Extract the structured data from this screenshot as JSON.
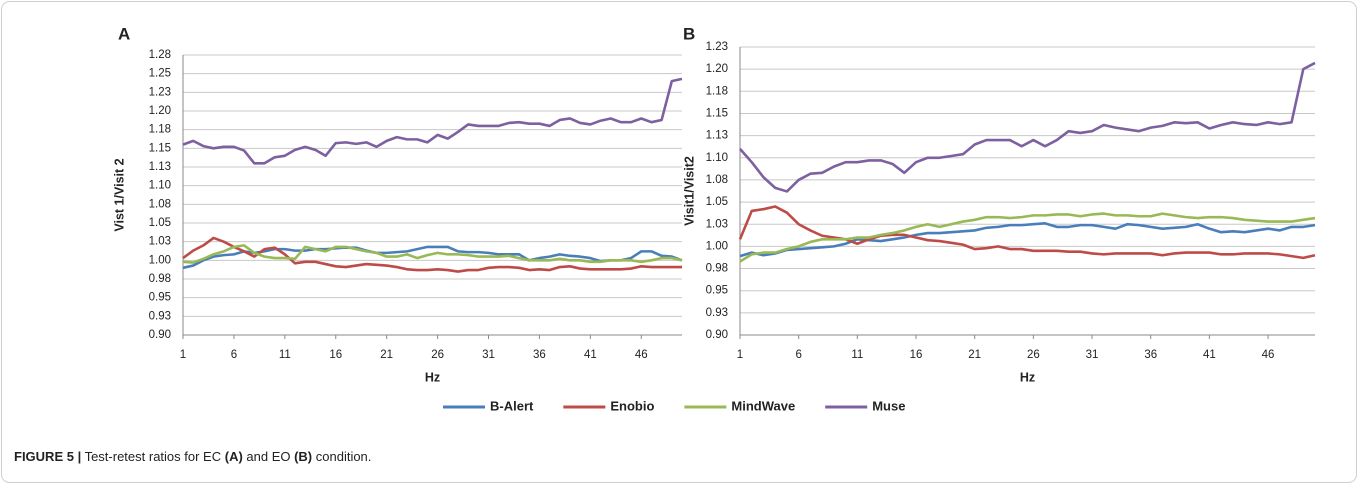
{
  "chart_data": [
    {
      "type": "line",
      "panel": "A",
      "y_label": "Vist 1/Visit 2",
      "x_label": "Hz",
      "x": [
        1,
        2,
        3,
        4,
        5,
        6,
        7,
        8,
        9,
        10,
        11,
        12,
        13,
        14,
        15,
        16,
        17,
        18,
        19,
        20,
        21,
        22,
        23,
        24,
        25,
        26,
        27,
        28,
        29,
        30,
        31,
        32,
        33,
        34,
        35,
        36,
        37,
        38,
        39,
        40,
        41,
        42,
        43,
        44,
        45,
        46,
        47,
        48,
        49,
        50
      ],
      "xlim": [
        1,
        50
      ],
      "xticks": [
        1,
        6,
        11,
        16,
        21,
        26,
        31,
        36,
        41,
        46
      ],
      "ylim": [
        0.9,
        1.275
      ],
      "yticks": [
        {
          "value": 0.9,
          "label": "0.90"
        },
        {
          "value": 0.925,
          "label": "0.93"
        },
        {
          "value": 0.95,
          "label": "0.95"
        },
        {
          "value": 0.975,
          "label": "0.98"
        },
        {
          "value": 1.0,
          "label": "1.00"
        },
        {
          "value": 1.025,
          "label": "1.03"
        },
        {
          "value": 1.05,
          "label": "1.05"
        },
        {
          "value": 1.075,
          "label": "1.08"
        },
        {
          "value": 1.1,
          "label": "1.10"
        },
        {
          "value": 1.125,
          "label": "1.13"
        },
        {
          "value": 1.15,
          "label": "1.15"
        },
        {
          "value": 1.175,
          "label": "1.18"
        },
        {
          "value": 1.2,
          "label": "1.20"
        },
        {
          "value": 1.225,
          "label": "1.23"
        },
        {
          "value": 1.25,
          "label": "1.25"
        },
        {
          "value": 1.275,
          "label": "1.28"
        }
      ],
      "grid": true,
      "series": [
        {
          "name": "B-Alert",
          "color": "#4a7ebb",
          "values": [
            0.99,
            0.993,
            1.0,
            1.005,
            1.007,
            1.008,
            1.012,
            1.01,
            1.012,
            1.015,
            1.015,
            1.013,
            1.013,
            1.015,
            1.015,
            1.016,
            1.017,
            1.017,
            1.013,
            1.01,
            1.01,
            1.011,
            1.012,
            1.015,
            1.018,
            1.018,
            1.018,
            1.012,
            1.011,
            1.011,
            1.01,
            1.008,
            1.008,
            1.008,
            1.0,
            1.003,
            1.005,
            1.008,
            1.006,
            1.005,
            1.003,
            0.999,
            1.0,
            1.0,
            1.003,
            1.012,
            1.012,
            1.006,
            1.005,
            1.0
          ]
        },
        {
          "name": "Enobio",
          "color": "#be4b48",
          "values": [
            1.003,
            1.013,
            1.02,
            1.03,
            1.025,
            1.018,
            1.012,
            1.005,
            1.015,
            1.017,
            1.008,
            0.996,
            0.998,
            0.998,
            0.995,
            0.992,
            0.991,
            0.993,
            0.995,
            0.994,
            0.993,
            0.991,
            0.988,
            0.987,
            0.987,
            0.988,
            0.987,
            0.985,
            0.987,
            0.987,
            0.99,
            0.991,
            0.991,
            0.99,
            0.987,
            0.988,
            0.987,
            0.991,
            0.992,
            0.989,
            0.988,
            0.988,
            0.988,
            0.988,
            0.989,
            0.992,
            0.991,
            0.991,
            0.991,
            0.991
          ]
        },
        {
          "name": "MindWave",
          "color": "#98b954",
          "values": [
            0.998,
            0.997,
            1.002,
            1.008,
            1.012,
            1.018,
            1.02,
            1.01,
            1.005,
            1.003,
            1.003,
            1.002,
            1.018,
            1.015,
            1.012,
            1.018,
            1.018,
            1.015,
            1.012,
            1.01,
            1.005,
            1.005,
            1.008,
            1.003,
            1.007,
            1.01,
            1.008,
            1.008,
            1.007,
            1.005,
            1.005,
            1.005,
            1.006,
            1.003,
            1.0,
            1.0,
            1.0,
            1.002,
            1.0,
            1.0,
            0.998,
            0.998,
            1.0,
            1.0,
            1.0,
            0.998,
            1.0,
            1.003,
            1.003,
            1.0
          ]
        },
        {
          "name": "Muse",
          "color": "#7d60a0",
          "values": [
            1.155,
            1.16,
            1.153,
            1.15,
            1.152,
            1.152,
            1.147,
            1.13,
            1.13,
            1.138,
            1.14,
            1.148,
            1.152,
            1.148,
            1.14,
            1.157,
            1.158,
            1.156,
            1.158,
            1.152,
            1.16,
            1.165,
            1.162,
            1.162,
            1.158,
            1.168,
            1.163,
            1.172,
            1.182,
            1.18,
            1.18,
            1.18,
            1.184,
            1.185,
            1.183,
            1.183,
            1.18,
            1.188,
            1.19,
            1.184,
            1.182,
            1.187,
            1.19,
            1.185,
            1.185,
            1.19,
            1.185,
            1.188,
            1.24,
            1.243
          ]
        }
      ]
    },
    {
      "type": "line",
      "panel": "B",
      "y_label": "Visit1/Visit2",
      "x_label": "Hz",
      "x": [
        1,
        2,
        3,
        4,
        5,
        6,
        7,
        8,
        9,
        10,
        11,
        12,
        13,
        14,
        15,
        16,
        17,
        18,
        19,
        20,
        21,
        22,
        23,
        24,
        25,
        26,
        27,
        28,
        29,
        30,
        31,
        32,
        33,
        34,
        35,
        36,
        37,
        38,
        39,
        40,
        41,
        42,
        43,
        44,
        45,
        46,
        47,
        48,
        49,
        50
      ],
      "xlim": [
        1,
        50
      ],
      "xticks": [
        1,
        6,
        11,
        16,
        21,
        26,
        31,
        36,
        41,
        46
      ],
      "ylim": [
        0.9,
        1.225
      ],
      "yticks": [
        {
          "value": 0.9,
          "label": "0.90"
        },
        {
          "value": 0.925,
          "label": "0.93"
        },
        {
          "value": 0.95,
          "label": "0.95"
        },
        {
          "value": 0.975,
          "label": "0.98"
        },
        {
          "value": 1.0,
          "label": "1.00"
        },
        {
          "value": 1.025,
          "label": "1.03"
        },
        {
          "value": 1.05,
          "label": "1.05"
        },
        {
          "value": 1.075,
          "label": "1.08"
        },
        {
          "value": 1.1,
          "label": "1.10"
        },
        {
          "value": 1.125,
          "label": "1.13"
        },
        {
          "value": 1.15,
          "label": "1.15"
        },
        {
          "value": 1.175,
          "label": "1.18"
        },
        {
          "value": 1.2,
          "label": "1.20"
        },
        {
          "value": 1.225,
          "label": "1.23"
        }
      ],
      "grid": true,
      "series": [
        {
          "name": "B-Alert",
          "color": "#4a7ebb",
          "values": [
            0.989,
            0.993,
            0.99,
            0.992,
            0.996,
            0.997,
            0.998,
            0.999,
            1.0,
            1.003,
            1.008,
            1.007,
            1.006,
            1.008,
            1.01,
            1.013,
            1.015,
            1.015,
            1.016,
            1.017,
            1.018,
            1.021,
            1.022,
            1.024,
            1.024,
            1.025,
            1.026,
            1.022,
            1.022,
            1.024,
            1.024,
            1.022,
            1.02,
            1.025,
            1.024,
            1.022,
            1.02,
            1.021,
            1.022,
            1.025,
            1.02,
            1.016,
            1.017,
            1.016,
            1.018,
            1.02,
            1.018,
            1.022,
            1.022,
            1.024
          ]
        },
        {
          "name": "Enobio",
          "color": "#be4b48",
          "values": [
            1.008,
            1.04,
            1.042,
            1.045,
            1.038,
            1.025,
            1.018,
            1.012,
            1.01,
            1.008,
            1.003,
            1.008,
            1.012,
            1.013,
            1.013,
            1.01,
            1.007,
            1.006,
            1.004,
            1.002,
            0.997,
            0.998,
            1.0,
            0.997,
            0.997,
            0.995,
            0.995,
            0.995,
            0.994,
            0.994,
            0.992,
            0.991,
            0.992,
            0.992,
            0.992,
            0.992,
            0.99,
            0.992,
            0.993,
            0.993,
            0.993,
            0.991,
            0.991,
            0.992,
            0.992,
            0.992,
            0.991,
            0.989,
            0.987,
            0.99
          ]
        },
        {
          "name": "MindWave",
          "color": "#98b954",
          "values": [
            0.983,
            0.991,
            0.993,
            0.993,
            0.997,
            1.0,
            1.005,
            1.008,
            1.008,
            1.008,
            1.01,
            1.01,
            1.013,
            1.015,
            1.018,
            1.022,
            1.025,
            1.022,
            1.025,
            1.028,
            1.03,
            1.033,
            1.033,
            1.032,
            1.033,
            1.035,
            1.035,
            1.036,
            1.036,
            1.034,
            1.036,
            1.037,
            1.035,
            1.035,
            1.034,
            1.034,
            1.037,
            1.035,
            1.033,
            1.032,
            1.033,
            1.033,
            1.032,
            1.03,
            1.029,
            1.028,
            1.028,
            1.028,
            1.03,
            1.032
          ]
        },
        {
          "name": "Muse",
          "color": "#7d60a0",
          "values": [
            1.11,
            1.095,
            1.078,
            1.066,
            1.062,
            1.075,
            1.082,
            1.083,
            1.09,
            1.095,
            1.095,
            1.097,
            1.097,
            1.093,
            1.083,
            1.095,
            1.1,
            1.1,
            1.102,
            1.104,
            1.115,
            1.12,
            1.12,
            1.12,
            1.113,
            1.12,
            1.113,
            1.12,
            1.13,
            1.128,
            1.13,
            1.137,
            1.134,
            1.132,
            1.13,
            1.134,
            1.136,
            1.14,
            1.139,
            1.14,
            1.133,
            1.137,
            1.14,
            1.138,
            1.137,
            1.14,
            1.138,
            1.14,
            1.2,
            1.207
          ]
        }
      ]
    }
  ],
  "caption": [
    {
      "text": "FIGURE 5 |",
      "bold": true
    },
    {
      "text": " Test-retest ratios for EC ",
      "bold": false
    },
    {
      "text": "(A)",
      "bold": true
    },
    {
      "text": " and EO ",
      "bold": false
    },
    {
      "text": "(B)",
      "bold": true
    },
    {
      "text": " condition.",
      "bold": false
    }
  ]
}
